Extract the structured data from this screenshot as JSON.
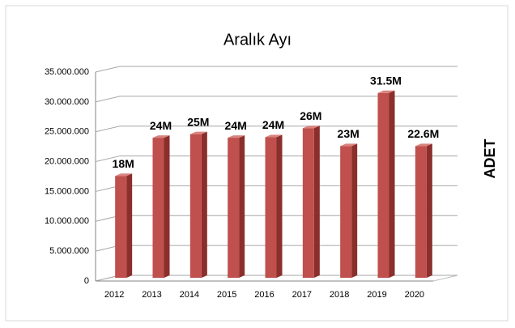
{
  "chart_data": {
    "type": "bar3d",
    "title": "Aralık Ayı",
    "y_label": "ADET",
    "categories": [
      "2012",
      "2013",
      "2014",
      "2015",
      "2016",
      "2017",
      "2018",
      "2019",
      "2020"
    ],
    "values": [
      17600000,
      24000000,
      24600000,
      24000000,
      24100000,
      25600000,
      22600000,
      31500000,
      22600000
    ],
    "value_labels": [
      "18M",
      "24M",
      "25M",
      "24M",
      "24M",
      "26M",
      "23M",
      "31.5M",
      "22.6M"
    ],
    "color": "#c0504d",
    "ylim": [
      0,
      35000000
    ],
    "yticks": [
      0,
      {
        "value": 5000000,
        "label": "5.000.000"
      },
      {
        "value": 10000000,
        "label": "10.000.000"
      },
      {
        "value": 15000000,
        "label": "15.000.000"
      },
      {
        "value": 20000000,
        "label": "20.000.000"
      },
      {
        "value": 25000000,
        "label": "25.000.000"
      },
      {
        "value": 30000000,
        "label": "30.000.000"
      },
      {
        "value": 35000000,
        "label": "35.000.000"
      }
    ],
    "grid": true
  }
}
